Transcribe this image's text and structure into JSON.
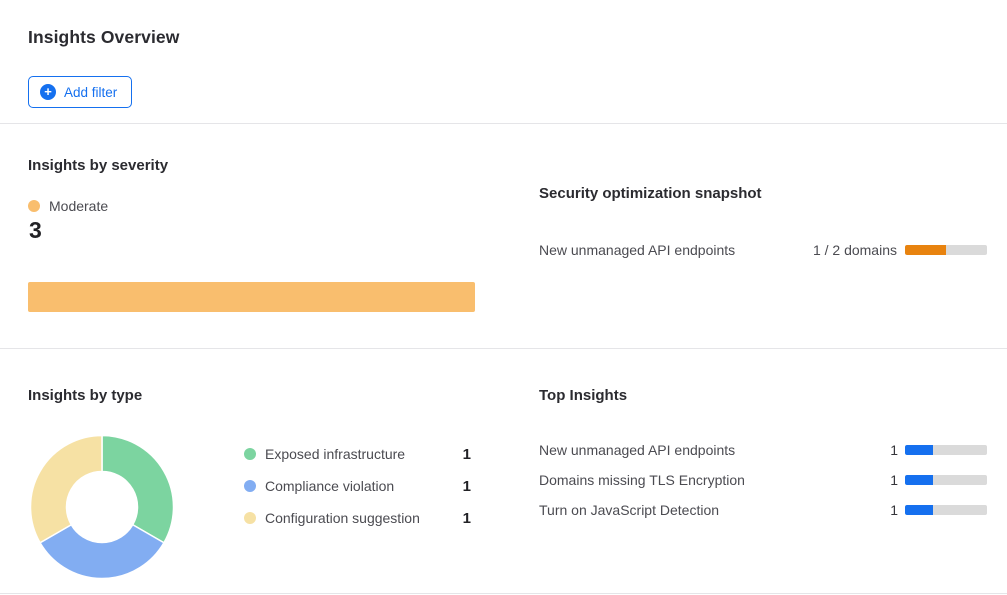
{
  "page": {
    "title": "Insights Overview"
  },
  "toolbar": {
    "add_filter_label": "Add filter",
    "add_filter_icon": "+"
  },
  "colors": {
    "accent_blue": "#1570ef",
    "severity_moderate_orange": "#f9be6e",
    "snapshot_orange": "#e8830f",
    "type_green": "#7cd4a0",
    "type_blue": "#82adf2",
    "type_yellow": "#f6e1a4",
    "bar_track_gray": "#dadada",
    "divider_gray": "#e5e5e8"
  },
  "chart_data": [
    {
      "type": "bar",
      "title": "Insights by severity",
      "orientation": "horizontal",
      "categories": [
        "Moderate"
      ],
      "values": [
        3
      ],
      "colors": [
        "#f9be6e"
      ],
      "xlim": [
        0,
        3
      ],
      "legend_position": "top"
    },
    {
      "type": "pie",
      "title": "Insights by type",
      "donut": true,
      "categories": [
        "Exposed infrastructure",
        "Compliance violation",
        "Configuration suggestion"
      ],
      "values": [
        1,
        1,
        1
      ],
      "colors": [
        "#7cd4a0",
        "#82adf2",
        "#f6e1a4"
      ],
      "legend_position": "right"
    },
    {
      "type": "bar",
      "title": "Top Insights",
      "orientation": "horizontal",
      "categories": [
        "New unmanaged API endpoints",
        "Domains missing TLS Encryption",
        "Turn on JavaScript Detection"
      ],
      "values": [
        1,
        1,
        1
      ],
      "colors": [
        "#1570ef",
        "#1570ef",
        "#1570ef"
      ],
      "xlim": [
        0,
        3
      ]
    }
  ],
  "insights_by_severity": {
    "heading": "Insights by severity",
    "legend_label": "Moderate",
    "count": "3",
    "bar": {
      "percent": 100,
      "color": "#f9be6e",
      "track": "#f9be6e"
    }
  },
  "security_snapshot": {
    "heading": "Security optimization snapshot",
    "rows": [
      {
        "label": "New unmanaged API endpoints",
        "value_text": "1 / 2 domains",
        "progress": {
          "percent": 50,
          "color": "#e8830f",
          "track": "#dadada"
        }
      }
    ]
  },
  "insights_by_type": {
    "heading": "Insights by type",
    "legend": [
      {
        "label": "Exposed infrastructure",
        "value": "1"
      },
      {
        "label": "Compliance violation",
        "value": "1"
      },
      {
        "label": "Configuration suggestion",
        "value": "1"
      }
    ]
  },
  "top_insights": {
    "heading": "Top Insights",
    "rows": [
      {
        "label": "New unmanaged API endpoints",
        "value": "1",
        "progress": {
          "percent": 34,
          "color": "#1570ef",
          "track": "#dadada"
        }
      },
      {
        "label": "Domains missing TLS Encryption",
        "value": "1",
        "progress": {
          "percent": 34,
          "color": "#1570ef",
          "track": "#dadada"
        }
      },
      {
        "label": "Turn on JavaScript Detection",
        "value": "1",
        "progress": {
          "percent": 34,
          "color": "#1570ef",
          "track": "#dadada"
        }
      }
    ]
  }
}
